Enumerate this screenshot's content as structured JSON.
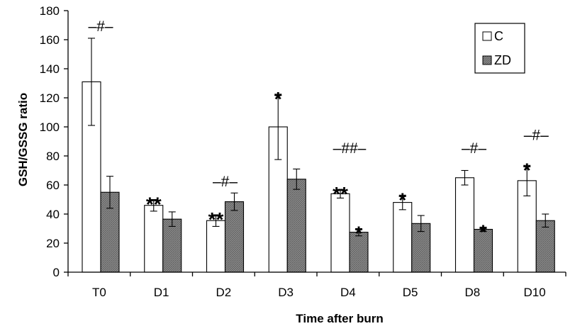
{
  "chart_data": {
    "type": "bar",
    "xlabel": "Time after burn",
    "ylabel": "GSH/GSSG ratio",
    "ylim": [
      0,
      180
    ],
    "yticks": [
      0,
      20,
      40,
      60,
      80,
      100,
      120,
      140,
      160,
      180
    ],
    "categories": [
      "T0",
      "D1",
      "D2",
      "D3",
      "D4",
      "D5",
      "D8",
      "D10"
    ],
    "series": [
      {
        "name": "C",
        "color": "#ffffff",
        "values": [
          131,
          46,
          35.5,
          100,
          54,
          48,
          65,
          63
        ],
        "errors": [
          30,
          4,
          4,
          22.5,
          3,
          5,
          5,
          10.5
        ]
      },
      {
        "name": "ZD",
        "color": "#8a8a8a",
        "values": [
          55,
          36.5,
          48.5,
          64,
          27.5,
          33.5,
          29.5,
          35.5
        ],
        "errors": [
          11,
          5,
          6,
          7,
          2.5,
          5.5,
          1.5,
          4.5
        ]
      }
    ],
    "annotations": [
      {
        "category": "T0",
        "text": "–#–",
        "kind": "hash",
        "at": 164
      },
      {
        "category": "D1",
        "text": "**",
        "kind": "star",
        "series": "C",
        "at": 50
      },
      {
        "category": "D2",
        "text": "**",
        "kind": "star",
        "series": "C",
        "at": 39.5
      },
      {
        "category": "D2",
        "text": "–#–",
        "kind": "hash",
        "at": 57
      },
      {
        "category": "D3",
        "text": "*",
        "kind": "star",
        "series": "C",
        "at": 122.5
      },
      {
        "category": "D4",
        "text": "**",
        "kind": "star",
        "series": "C",
        "at": 57
      },
      {
        "category": "D4",
        "text": "*",
        "kind": "star",
        "series": "ZD",
        "at": 30
      },
      {
        "category": "D4",
        "text": "–##–",
        "kind": "hash",
        "at": 80
      },
      {
        "category": "D5",
        "text": "*",
        "kind": "star",
        "series": "C",
        "at": 53
      },
      {
        "category": "D8",
        "text": "*",
        "kind": "star",
        "series": "ZD",
        "at": 31
      },
      {
        "category": "D8",
        "text": "–#–",
        "kind": "hash",
        "at": 80
      },
      {
        "category": "D10",
        "text": "*",
        "kind": "star",
        "series": "C",
        "at": 73.5
      },
      {
        "category": "D10",
        "text": "–#–",
        "kind": "hash",
        "at": 89
      }
    ],
    "legend": {
      "position": "top-right",
      "entries": [
        "C",
        "ZD"
      ]
    },
    "grid": false
  }
}
